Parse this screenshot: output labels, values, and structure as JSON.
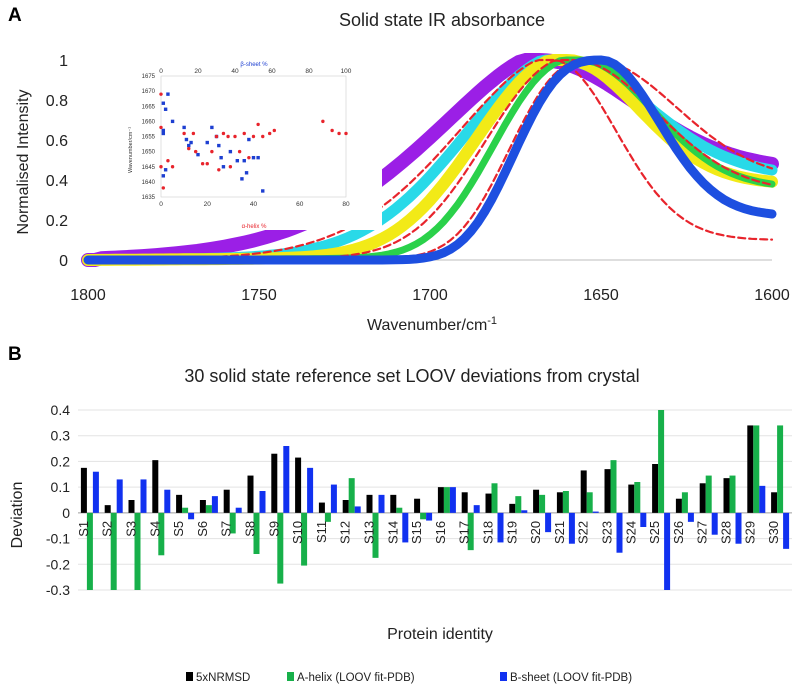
{
  "chart_data": [
    {
      "panel_label": "A",
      "type": "line",
      "title": "Solid state IR absorbance",
      "xlabel": "Wavenumber/cm",
      "xlabel_sup": "-1",
      "ylabel": "Normalised Intensity",
      "xlim": [
        1800,
        1600
      ],
      "ylim": [
        0,
        1
      ],
      "xticks": [
        "1800",
        "1750",
        "1700",
        "1650",
        "1600"
      ],
      "yticks": [
        "0",
        "0.2",
        "0.4",
        "0.6",
        "0.8",
        "1"
      ],
      "series_colors": [
        "#9b1fe6",
        "#29d9e8",
        "#f2ea17",
        "#2ad14a",
        "#e8242c",
        "#1d4fe0"
      ],
      "inset": {
        "type": "scatter",
        "top_label": "β-sheet %",
        "bottom_label": "α-helix %",
        "ylabel": "Wavenumber/cm⁻¹",
        "top_ticks": [
          "0",
          "20",
          "40",
          "60",
          "80",
          "100"
        ],
        "bottom_ticks": [
          "0",
          "20",
          "40",
          "60",
          "80"
        ],
        "yticks": [
          "1635",
          "1640",
          "1645",
          "1650",
          "1655",
          "1660",
          "1665",
          "1670",
          "1675"
        ],
        "xlim_bottom": [
          0,
          80
        ],
        "xlim_top": [
          0,
          100
        ],
        "ylim": [
          1635,
          1675
        ],
        "beta_points": [
          [
            1,
            1656
          ],
          [
            1,
            1657
          ],
          [
            1,
            1666
          ],
          [
            2,
            1664
          ],
          [
            3,
            1669
          ],
          [
            5,
            1660
          ],
          [
            10,
            1658
          ],
          [
            11,
            1654
          ],
          [
            12,
            1652
          ],
          [
            13,
            1653
          ],
          [
            16,
            1649
          ],
          [
            20,
            1653
          ],
          [
            22,
            1658
          ],
          [
            24,
            1655
          ],
          [
            25,
            1652
          ],
          [
            26,
            1648
          ],
          [
            27,
            1645
          ],
          [
            30,
            1650
          ],
          [
            33,
            1647
          ],
          [
            35,
            1641
          ],
          [
            36,
            1647
          ],
          [
            37,
            1643
          ],
          [
            38,
            1654
          ],
          [
            40,
            1648
          ],
          [
            42,
            1648
          ],
          [
            44,
            1637
          ],
          [
            1,
            1642
          ],
          [
            2,
            1644
          ]
        ],
        "alpha_points": [
          [
            0,
            1669
          ],
          [
            0,
            1658
          ],
          [
            0,
            1645
          ],
          [
            1,
            1638
          ],
          [
            3,
            1647
          ],
          [
            5,
            1645
          ],
          [
            10,
            1656
          ],
          [
            12,
            1651
          ],
          [
            14,
            1656
          ],
          [
            15,
            1650
          ],
          [
            18,
            1646
          ],
          [
            20,
            1646
          ],
          [
            22,
            1650
          ],
          [
            24,
            1655
          ],
          [
            25,
            1644
          ],
          [
            27,
            1656
          ],
          [
            29,
            1655
          ],
          [
            30,
            1645
          ],
          [
            32,
            1655
          ],
          [
            34,
            1650
          ],
          [
            36,
            1656
          ],
          [
            38,
            1648
          ],
          [
            40,
            1655
          ],
          [
            42,
            1659
          ],
          [
            44,
            1655
          ],
          [
            47,
            1656
          ],
          [
            49,
            1657
          ],
          [
            70,
            1660
          ],
          [
            74,
            1657
          ],
          [
            77,
            1656
          ],
          [
            80,
            1656
          ]
        ]
      }
    },
    {
      "panel_label": "B",
      "type": "bar",
      "title": "30 solid state reference set LOOV deviations from crystal",
      "xlabel": "Protein identity",
      "ylabel": "Deviation",
      "ylim": [
        -0.3,
        0.4
      ],
      "yticks": [
        "-0.3",
        "-0.2",
        "-0.1",
        "0",
        "0.1",
        "0.2",
        "0.3",
        "0.4"
      ],
      "categories": [
        "S1",
        "S2",
        "S3",
        "S4",
        "S5",
        "S6",
        "S7",
        "S8",
        "S9",
        "S10",
        "S11",
        "S12",
        "S13",
        "S14",
        "S15",
        "S16",
        "S17",
        "S18",
        "S19",
        "S20",
        "S21",
        "S22",
        "S23",
        "S24",
        "S25",
        "S26",
        "S27",
        "S28",
        "S29",
        "S30"
      ],
      "series": [
        {
          "name": "5xNRMSD",
          "color": "#000000",
          "values": [
            0.175,
            0.03,
            0.05,
            0.205,
            0.07,
            0.05,
            0.09,
            0.145,
            0.23,
            0.215,
            0.04,
            0.05,
            0.07,
            0.07,
            0.055,
            0.1,
            0.08,
            0.075,
            0.035,
            0.09,
            0.08,
            0.165,
            0.17,
            0.11,
            0.19,
            0.055,
            0.115,
            0.135,
            0.34,
            0.08
          ]
        },
        {
          "name": "A-helix (LOOV fit-PDB)",
          "color": "#17b04a",
          "values": [
            -0.3,
            -0.3,
            -0.3,
            -0.165,
            0.02,
            0.03,
            -0.08,
            -0.16,
            -0.275,
            -0.205,
            -0.035,
            0.135,
            -0.175,
            0.02,
            -0.025,
            0.1,
            -0.145,
            0.115,
            0.065,
            0.07,
            0.085,
            0.08,
            0.205,
            0.12,
            0.4,
            0.08,
            0.145,
            0.145,
            0.34,
            0.34
          ]
        },
        {
          "name": "B-sheet (LOOV fit-PDB)",
          "color": "#1131f0",
          "values": [
            0.16,
            0.13,
            0.13,
            0.09,
            -0.025,
            0.065,
            0.02,
            0.085,
            0.26,
            0.175,
            0.11,
            0.025,
            0.07,
            -0.115,
            -0.03,
            0.1,
            0.03,
            -0.115,
            0.01,
            -0.075,
            -0.12,
            0.005,
            -0.155,
            -0.055,
            -0.3,
            -0.035,
            -0.085,
            -0.12,
            0.105,
            -0.14
          ]
        }
      ]
    }
  ]
}
